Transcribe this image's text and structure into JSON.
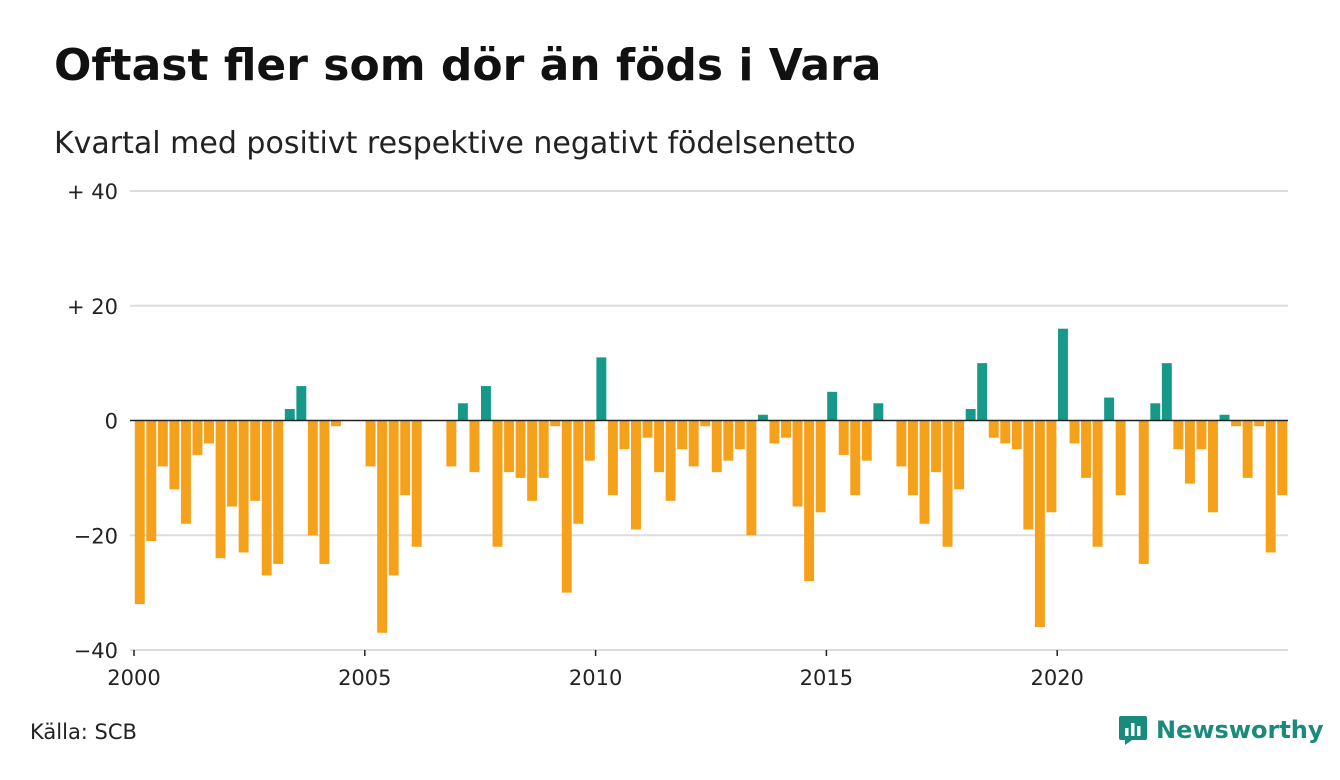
{
  "header": {
    "title": "Oftast fler som dör än föds i Vara",
    "subtitle": "Kvartal med positivt respektive negativt födelsenetto"
  },
  "footer": {
    "source": "Källa: SCB",
    "brand": "Newsworthy"
  },
  "colors": {
    "positive": "#17998a",
    "negative": "#f5a11c",
    "grid": "#dddddd",
    "brand": "#1a8a7c"
  },
  "chart_data": {
    "type": "bar",
    "title": "Oftast fler som dör än föds i Vara",
    "subtitle": "Kvartal med positivt respektive negativt födelsenetto",
    "xlabel": "",
    "ylabel": "",
    "ylim": [
      -40,
      40
    ],
    "grid": true,
    "legend": "none",
    "x_start": "2000 Q1",
    "yticks": [
      {
        "value": 40,
        "label": "+ 40"
      },
      {
        "value": 20,
        "label": "+ 20"
      },
      {
        "value": 0,
        "label": "0"
      },
      {
        "value": -20,
        "label": "−20"
      },
      {
        "value": -40,
        "label": "−40"
      }
    ],
    "xticks": [
      {
        "value": 2000,
        "label": "2000"
      },
      {
        "value": 2005,
        "label": "2005"
      },
      {
        "value": 2010,
        "label": "2010"
      },
      {
        "value": 2015,
        "label": "2015"
      },
      {
        "value": 2020,
        "label": "2020"
      }
    ],
    "values": [
      -32,
      -21,
      -8,
      -12,
      -18,
      -6,
      -4,
      -24,
      -15,
      -23,
      -14,
      -27,
      -25,
      2,
      6,
      -20,
      -25,
      -1,
      0,
      0,
      -8,
      -37,
      -27,
      -13,
      -22,
      0,
      0,
      -8,
      3,
      -9,
      6,
      -22,
      -9,
      -10,
      -14,
      -10,
      -1,
      -30,
      -18,
      -7,
      11,
      -13,
      -5,
      -19,
      -3,
      -9,
      -14,
      -5,
      -8,
      -1,
      -9,
      -7,
      -5,
      -20,
      1,
      -4,
      -3,
      -15,
      -28,
      -16,
      5,
      -6,
      -13,
      -7,
      3,
      0,
      -8,
      -13,
      -18,
      -9,
      -22,
      -12,
      2,
      10,
      -3,
      -4,
      -5,
      -19,
      -36,
      -16,
      16,
      -4,
      -10,
      -22,
      4,
      -13,
      0,
      -25,
      3,
      10,
      -5,
      -11,
      -5,
      -16,
      1,
      -1,
      -10,
      -1,
      -23,
      -13
    ]
  }
}
